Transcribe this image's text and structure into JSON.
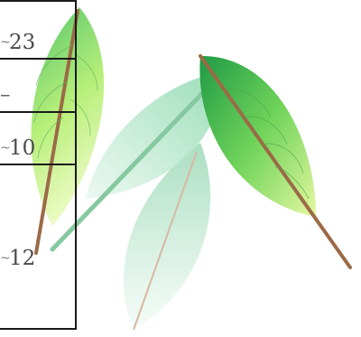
{
  "table": {
    "rows": [
      {
        "prefix": "~",
        "value": "23"
      },
      {
        "prefix": "",
        "value": "–"
      },
      {
        "prefix": "~",
        "value": "10"
      },
      {
        "prefix": "~",
        "value": "12"
      }
    ]
  },
  "colors": {
    "grid": "#1a1a1a",
    "text": "#4a4a4a",
    "leaf_green": "#3cb84a",
    "leaf_light": "#c9f59b",
    "leaf_pale": "#bfe8d6",
    "stem": "#8a5a3c"
  },
  "decoration": {
    "leaves_icon": "leaf-cluster-icon"
  }
}
